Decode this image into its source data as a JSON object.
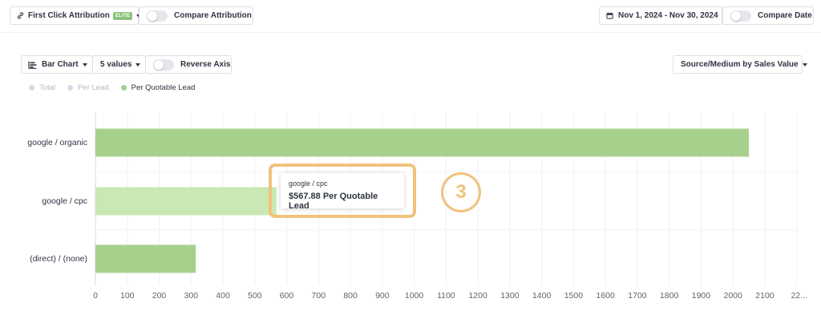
{
  "toolbar": {
    "attribution_label": "First Click Attribution",
    "attribution_badge": "ELITE",
    "compare_attribution_label": "Compare Attribution",
    "date_range": "Nov 1, 2024 - Nov 30, 2024",
    "compare_date_label": "Compare Date"
  },
  "chart_controls": {
    "chart_type": "Bar Chart",
    "values_count": "5 values",
    "reverse_axis_label": "Reverse Axis",
    "breakdown": "Source/Medium by Sales Value"
  },
  "legend": [
    {
      "label": "Total",
      "active": false
    },
    {
      "label": "Per Lead",
      "active": false
    },
    {
      "label": "Per Quotable Lead",
      "active": true
    }
  ],
  "tooltip": {
    "title": "google / cpc",
    "value": "$567.88 Per Quotable Lead"
  },
  "annotation": {
    "step_number": "3"
  },
  "colors": {
    "bar": "#a8d08d",
    "bar_hover": "#c9e8b3",
    "annotation": "#f1c27d"
  },
  "chart_data": {
    "type": "bar",
    "orientation": "horizontal",
    "categories": [
      "google / organic",
      "google / cpc",
      "(direct) / (none)"
    ],
    "series": [
      {
        "name": "Per Quotable Lead",
        "values": [
          2050,
          567.88,
          315
        ]
      }
    ],
    "xlim": [
      0,
      2200
    ],
    "x_ticks": [
      "0",
      "100",
      "200",
      "300",
      "400",
      "500",
      "600",
      "700",
      "800",
      "900",
      "1000",
      "1100",
      "1200",
      "1300",
      "1400",
      "1500",
      "1600",
      "1700",
      "1800",
      "1900",
      "2000",
      "2100",
      "22..."
    ],
    "grid": true,
    "legend_position": "top-left"
  }
}
